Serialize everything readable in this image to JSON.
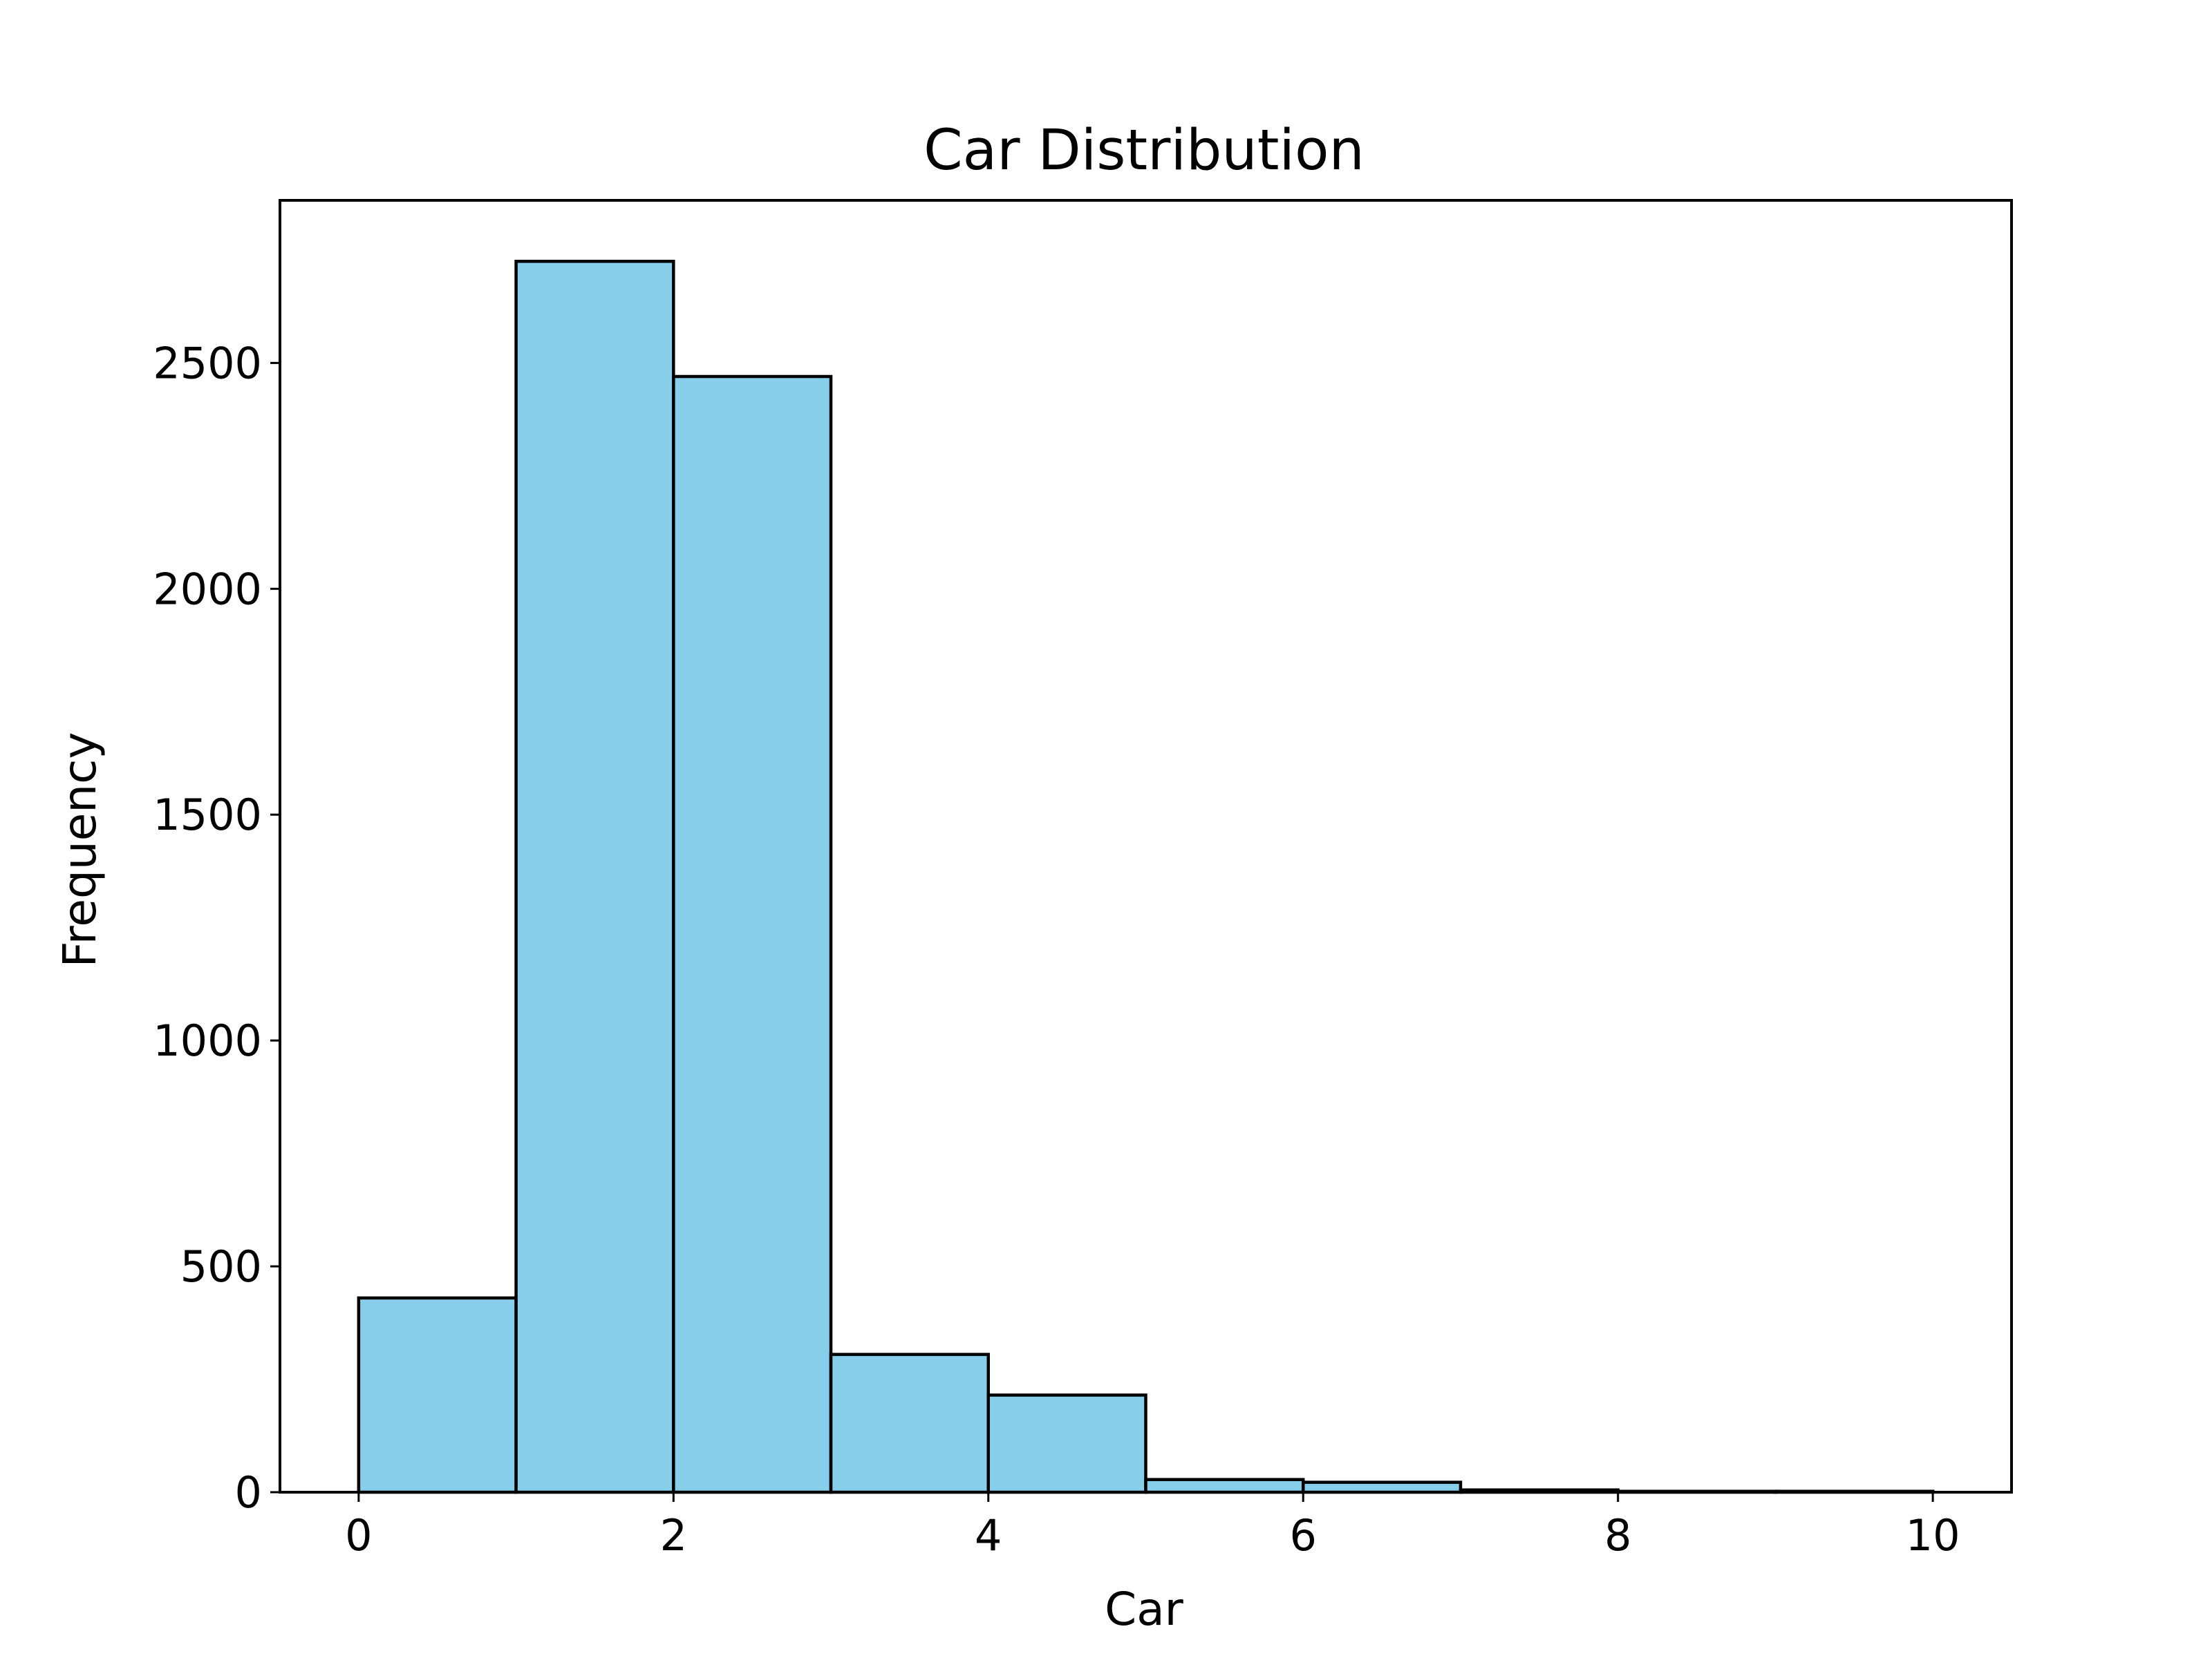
{
  "chart_data": {
    "type": "bar",
    "title": "Car Distribution",
    "xlabel": "Car",
    "ylabel": "Frequency",
    "bin_edges": [
      0,
      1,
      2,
      3,
      4,
      5,
      6,
      7,
      8,
      9,
      10
    ],
    "values": [
      430,
      2725,
      2470,
      305,
      215,
      28,
      22,
      5,
      2,
      2
    ],
    "xlim": [
      -0.5,
      10.5
    ],
    "ylim": [
      0,
      2860
    ],
    "xticks": [
      0,
      2,
      4,
      6,
      8,
      10
    ],
    "yticks": [
      0,
      500,
      1000,
      1500,
      2000,
      2500
    ],
    "bar_color": "#87CEEB",
    "edge_color": "#000000",
    "grid": false,
    "legend": "none"
  }
}
